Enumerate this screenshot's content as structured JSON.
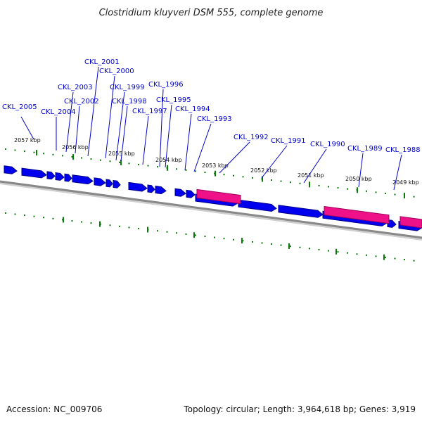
{
  "title": "Clostridium kluyveri DSM 555, complete genome",
  "footer": {
    "accession": "Accession: NC_009706",
    "summary": "Topology: circular; Length: 3,964,618 bp; Genes: 3,919"
  },
  "colors": {
    "cds": "#0000ee",
    "cds_dark": "#00008a",
    "rna": "#ee1188",
    "rna_dark": "#a0005c",
    "backbone": "#888888",
    "tick": "#0a7a0a",
    "label": "#0000cc",
    "callout": "#0000cc"
  },
  "gene_labels": [
    "CKL_2005",
    "CKL_2004",
    "CKL_2003",
    "CKL_2002",
    "CKL_2001",
    "CKL_2000",
    "CKL_1999",
    "CKL_1998",
    "CKL_1997",
    "CKL_1996",
    "CKL_1995",
    "CKL_1994",
    "CKL_1993",
    "CKL_1992",
    "CKL_1991",
    "CKL_1990",
    "CKL_1989",
    "CKL_1988"
  ],
  "scale_labels": [
    "2057 kbp",
    "2056 kbp",
    "2055 kbp",
    "2054 kbp",
    "2053 kbp",
    "2052 kbp",
    "2051 kbp",
    "2050 kbp",
    "2049 kbp"
  ],
  "feature_types": [
    "CDS",
    "CDS",
    "CDS",
    "CDS",
    "CDS",
    "CDS",
    "CDS",
    "CDS",
    "CDS",
    "CDS",
    "CDS",
    "CDS",
    "CDS",
    "CDS",
    "CDS",
    "CDS",
    "CDS",
    "rRNA",
    "CDS",
    "CDS",
    "CDS",
    "rRNA",
    "CDS",
    "CDS",
    "rRNA",
    "CDS"
  ]
}
